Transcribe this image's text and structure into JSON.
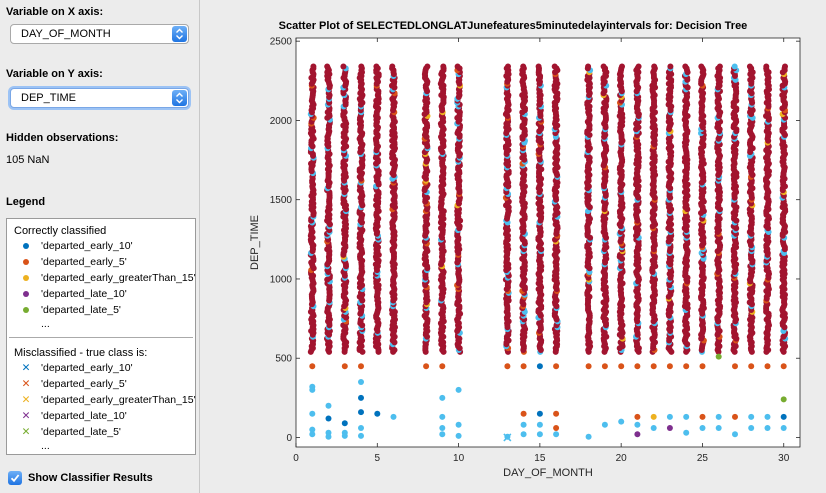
{
  "panel": {
    "x_axis_label": "Variable on X axis:",
    "x_axis_value": "DAY_OF_MONTH",
    "y_axis_label": "Variable on Y axis:",
    "y_axis_value": "DEP_TIME",
    "hidden_label": "Hidden observations:",
    "hidden_value": "105 NaN",
    "legend_label": "Legend",
    "show_results_label": "Show Classifier Results",
    "show_results_checked": true
  },
  "legend": {
    "correct_header": "Correctly classified",
    "correct_items": [
      {
        "label": "'departed_early_10'",
        "color": "#0072bd"
      },
      {
        "label": "'departed_early_5'",
        "color": "#d95319"
      },
      {
        "label": "'departed_early_greaterThan_15'",
        "color": "#edb120"
      },
      {
        "label": "'departed_late_10'",
        "color": "#7e2f8e"
      },
      {
        "label": "'departed_late_5'",
        "color": "#77ac30"
      }
    ],
    "correct_more": "...",
    "mis_header": "Misclassified - true class is:",
    "mis_items": [
      {
        "label": "'departed_early_10'",
        "color": "#0072bd"
      },
      {
        "label": "'departed_early_5'",
        "color": "#d95319"
      },
      {
        "label": "'departed_early_greaterThan_15'",
        "color": "#edb120"
      },
      {
        "label": "'departed_late_10'",
        "color": "#7e2f8e"
      },
      {
        "label": "'departed_late_5'",
        "color": "#77ac30"
      }
    ],
    "mis_more": "..."
  },
  "chart_data": {
    "type": "scatter",
    "title": "Scatter Plot of SELECTEDLONGLATJunefeatures5minutedelayintervals for: Decision Tree",
    "xlabel": "DAY_OF_MONTH",
    "ylabel": "DEP_TIME",
    "xlim": [
      0,
      31
    ],
    "ylim": [
      -60,
      2520
    ],
    "xticks": [
      0,
      5,
      10,
      15,
      20,
      25,
      30
    ],
    "yticks": [
      0,
      500,
      1000,
      1500,
      2000,
      2500
    ],
    "grid": false,
    "days": [
      1,
      2,
      3,
      4,
      5,
      6,
      8,
      9,
      10,
      13,
      14,
      15,
      16,
      18,
      19,
      20,
      21,
      22,
      23,
      24,
      25,
      26,
      27,
      28,
      29,
      30
    ],
    "dense_band": [
      540,
      2340
    ],
    "dominant_color": "#a2142f",
    "secondary_color": "#4dbeee",
    "sparse_points": [
      [
        1,
        450,
        "#d95319"
      ],
      [
        1,
        320,
        "#4dbeee"
      ],
      [
        1,
        150,
        "#4dbeee"
      ],
      [
        1,
        50,
        "#4dbeee"
      ],
      [
        1,
        20,
        "#4dbeee"
      ],
      [
        1,
        300,
        "#4dbeee"
      ],
      [
        2,
        120,
        "#0072bd"
      ],
      [
        2,
        30,
        "#4dbeee"
      ],
      [
        2,
        200,
        "#4dbeee"
      ],
      [
        2,
        5,
        "#4dbeee"
      ],
      [
        3,
        450,
        "#d95319"
      ],
      [
        3,
        90,
        "#0072bd"
      ],
      [
        3,
        30,
        "#4dbeee"
      ],
      [
        3,
        10,
        "#4dbeee"
      ],
      [
        4,
        450,
        "#d95319"
      ],
      [
        4,
        350,
        "#4dbeee"
      ],
      [
        4,
        250,
        "#0072bd"
      ],
      [
        4,
        160,
        "#0072bd"
      ],
      [
        4,
        60,
        "#4dbeee"
      ],
      [
        4,
        10,
        "#4dbeee"
      ],
      [
        5,
        150,
        "#0072bd"
      ],
      [
        6,
        130,
        "#4dbeee"
      ],
      [
        8,
        450,
        "#d95319"
      ],
      [
        9,
        450,
        "#d95319"
      ],
      [
        9,
        250,
        "#4dbeee"
      ],
      [
        9,
        130,
        "#4dbeee"
      ],
      [
        9,
        60,
        "#4dbeee"
      ],
      [
        9,
        20,
        "#4dbeee"
      ],
      [
        10,
        300,
        "#4dbeee"
      ],
      [
        10,
        80,
        "#4dbeee"
      ],
      [
        10,
        10,
        "#4dbeee"
      ],
      [
        13,
        450,
        "#d95319"
      ],
      [
        13,
        5,
        "#4dbeee"
      ],
      [
        14,
        450,
        "#d95319"
      ],
      [
        14,
        150,
        "#d95319"
      ],
      [
        14,
        80,
        "#4dbeee"
      ],
      [
        14,
        20,
        "#4dbeee"
      ],
      [
        15,
        450,
        "#0072bd"
      ],
      [
        15,
        150,
        "#0072bd"
      ],
      [
        15,
        80,
        "#4dbeee"
      ],
      [
        15,
        20,
        "#4dbeee"
      ],
      [
        16,
        450,
        "#d95319"
      ],
      [
        16,
        150,
        "#d95319"
      ],
      [
        16,
        60,
        "#d95319"
      ],
      [
        16,
        20,
        "#4dbeee"
      ],
      [
        18,
        450,
        "#d95319"
      ],
      [
        18,
        5,
        "#4dbeee"
      ],
      [
        19,
        450,
        "#d95319"
      ],
      [
        19,
        80,
        "#4dbeee"
      ],
      [
        20,
        450,
        "#d95319"
      ],
      [
        20,
        100,
        "#4dbeee"
      ],
      [
        21,
        450,
        "#d95319"
      ],
      [
        21,
        130,
        "#d95319"
      ],
      [
        21,
        80,
        "#4dbeee"
      ],
      [
        21,
        20,
        "#7e2f8e"
      ],
      [
        22,
        450,
        "#d95319"
      ],
      [
        22,
        130,
        "#edb120"
      ],
      [
        22,
        60,
        "#4dbeee"
      ],
      [
        23,
        450,
        "#d95319"
      ],
      [
        23,
        130,
        "#4dbeee"
      ],
      [
        23,
        60,
        "#7e2f8e"
      ],
      [
        24,
        450,
        "#d95319"
      ],
      [
        24,
        130,
        "#4dbeee"
      ],
      [
        24,
        30,
        "#4dbeee"
      ],
      [
        25,
        450,
        "#d95319"
      ],
      [
        25,
        130,
        "#d95319"
      ],
      [
        25,
        60,
        "#4dbeee"
      ],
      [
        26,
        510,
        "#77ac30"
      ],
      [
        26,
        130,
        "#4dbeee"
      ],
      [
        26,
        60,
        "#4dbeee"
      ],
      [
        27,
        450,
        "#d95319"
      ],
      [
        27,
        130,
        "#d95319"
      ],
      [
        27,
        20,
        "#4dbeee"
      ],
      [
        28,
        450,
        "#d95319"
      ],
      [
        28,
        130,
        "#4dbeee"
      ],
      [
        28,
        60,
        "#4dbeee"
      ],
      [
        29,
        450,
        "#d95319"
      ],
      [
        29,
        130,
        "#4dbeee"
      ],
      [
        29,
        60,
        "#4dbeee"
      ],
      [
        30,
        450,
        "#d95319"
      ],
      [
        30,
        240,
        "#77ac30"
      ],
      [
        30,
        130,
        "#0072bd"
      ],
      [
        30,
        60,
        "#4dbeee"
      ]
    ],
    "misclassified_points": [
      [
        13,
        0,
        "#4dbeee"
      ]
    ]
  }
}
